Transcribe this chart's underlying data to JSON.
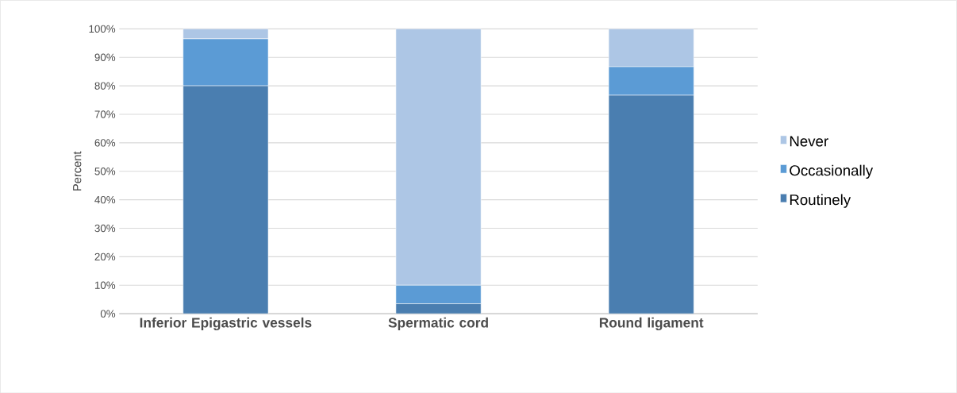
{
  "chart_data": {
    "type": "bar",
    "stacked": true,
    "ylabel": "Percent",
    "categories": [
      "Inferior Epigastric vessels",
      "Spermatic cord",
      "Round ligament"
    ],
    "series": [
      {
        "name": "Routinely",
        "color": "#4a7eb0",
        "values": [
          80,
          3.5,
          76.7
        ]
      },
      {
        "name": "Occasionally",
        "color": "#5b9bd5",
        "values": [
          16.5,
          6.5,
          10
        ]
      },
      {
        "name": "Never",
        "color": "#adc6e5",
        "values": [
          3.5,
          90,
          13.3
        ]
      }
    ],
    "ylim": [
      0,
      100
    ],
    "yticks": [
      {
        "value": 0,
        "label": "0%"
      },
      {
        "value": 10,
        "label": "10%"
      },
      {
        "value": 20,
        "label": "20%"
      },
      {
        "value": 30,
        "label": "30%"
      },
      {
        "value": 40,
        "label": "40%"
      },
      {
        "value": 50,
        "label": "50%"
      },
      {
        "value": 60,
        "label": "60%"
      },
      {
        "value": 70,
        "label": "70%"
      },
      {
        "value": 80,
        "label": "80%"
      },
      {
        "value": 90,
        "label": "90%"
      },
      {
        "value": 100,
        "label": "100%"
      }
    ],
    "grid": "y",
    "legend": "right"
  }
}
